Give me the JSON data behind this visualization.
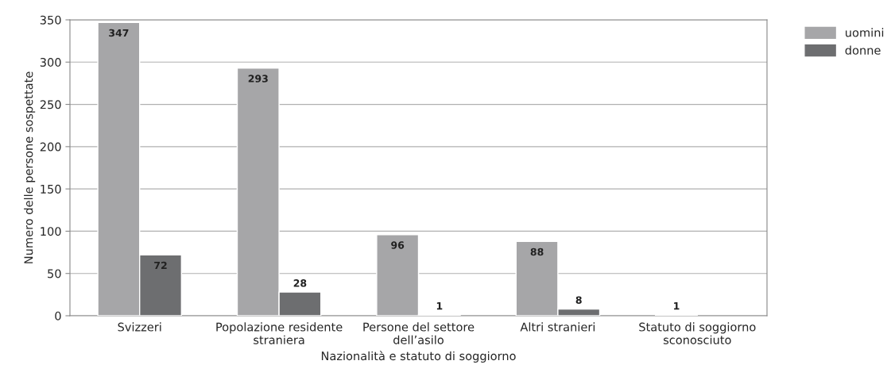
{
  "chart_data": {
    "type": "bar",
    "xlabel": "Nazionalità e statuto di soggiorno",
    "ylabel": "Numero delle persone sospettate",
    "categories": [
      "Svizzeri",
      "Popolazione residente\nstraniera",
      "Persone del settore\ndell’asilo",
      "Altri stranieri",
      "Statuto di soggiorno\nsconosciuto"
    ],
    "series": [
      {
        "name": "uomini",
        "color": "#a6a6a8",
        "values": [
          347,
          293,
          96,
          88,
          1
        ],
        "value_labels": [
          "347",
          "293",
          "96",
          "88",
          "1"
        ]
      },
      {
        "name": "donne",
        "color": "#6d6e70",
        "values": [
          72,
          28,
          1,
          8,
          null
        ],
        "value_labels": [
          "72",
          "28",
          "1",
          "8",
          null
        ]
      }
    ],
    "ylim": [
      0,
      350
    ],
    "yticks": [
      0,
      50,
      100,
      150,
      200,
      250,
      300,
      350
    ],
    "grid": "y",
    "legend": "top right"
  }
}
